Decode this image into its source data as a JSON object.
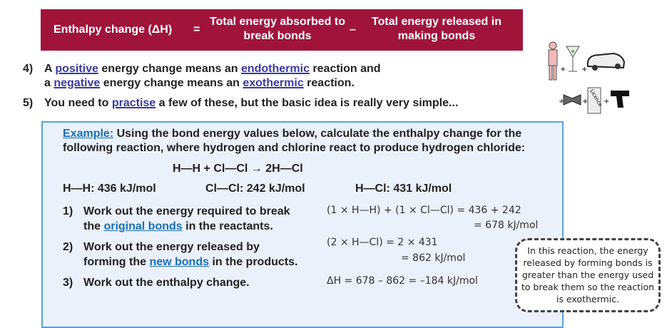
{
  "equation": {
    "lhs": "Enthalpy change (ΔH)",
    "equals": "=",
    "term1": "Total energy absorbed to break bonds",
    "minus": "–",
    "term2": "Total energy released in making bonds"
  },
  "points": [
    {
      "num": "4)",
      "parts": [
        "A ",
        "positive",
        " energy change means an ",
        "endothermic",
        " reaction and"
      ],
      "parts2": [
        "a ",
        "negative",
        " energy change means an ",
        "exothermic",
        " reaction."
      ]
    },
    {
      "num": "5)",
      "parts": [
        "You need to ",
        "practise",
        " a few of these, but the basic idea is really very simple..."
      ]
    }
  ],
  "example": {
    "label": "Example:",
    "intro": " Using the bond energy values below, calculate the enthalpy change for the following reaction, where hydrogen and chlorine react to produce hydrogen chloride:",
    "reaction": "H—H + Cl—Cl → 2H—Cl",
    "bonds": [
      "H—H: 436 kJ/mol",
      "Cl—Cl: 242 kJ/mol",
      "H—Cl: 431 kJ/mol"
    ],
    "steps": [
      {
        "num": "1)",
        "line1": "Work out the energy required to break",
        "pre": "the ",
        "link": "original bonds",
        "post": " in the reactants.",
        "calc1": "(1 × H—H) + (1 × Cl—Cl) = 436 + 242",
        "calc2": "= 678 kJ/mol"
      },
      {
        "num": "2)",
        "line1": "Work out the energy released by",
        "pre": "forming the ",
        "link": "new bonds",
        "post": " in the products.",
        "calc1": "(2 × H—Cl)  = 2 × 431",
        "calc2": "= 862 kJ/mol"
      },
      {
        "num": "3)",
        "line1": "Work out the enthalpy change.",
        "calc1": "ΔH  = 678 – 862 = –184 kJ/mol"
      }
    ]
  },
  "note": "In this reaction, the energy released by forming bonds is greater than the energy used to break them so the reaction is exothermic.",
  "illustration": {
    "icons": [
      "person-icon",
      "cocktail-icon",
      "car-icon",
      "bowtie-icon",
      "licence-icon",
      "gun-icon"
    ],
    "plus": "+",
    "licence_text": "Licence"
  },
  "colors": {
    "banner": "#a0143c",
    "link": "#3a3a9e",
    "example_border": "#5aa0dc",
    "example_bg": "#eaf1fb"
  }
}
